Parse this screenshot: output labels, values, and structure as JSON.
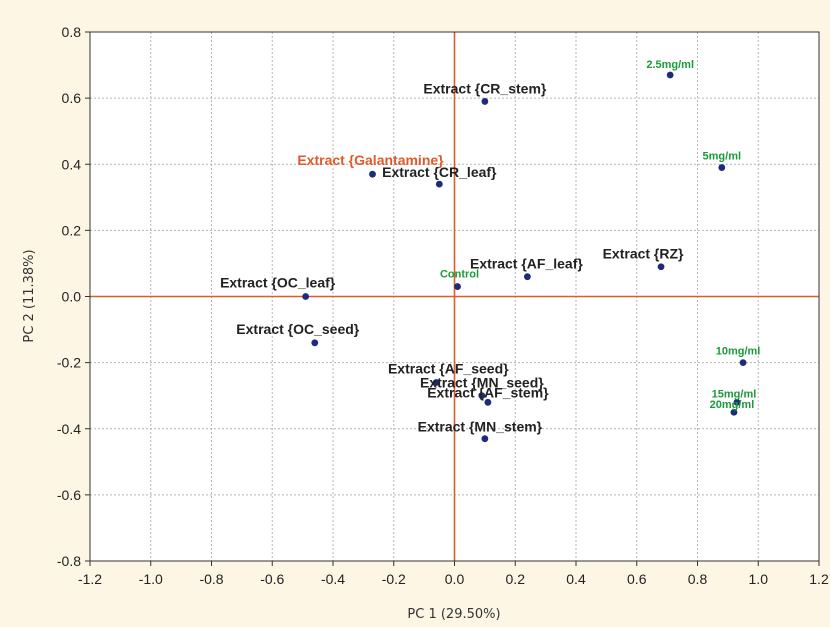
{
  "chart_data": {
    "type": "scatter",
    "title": "",
    "xlabel": "PC 1 (29.50%)",
    "ylabel": "PC 2 (11.38%)",
    "xlim": [
      -1.2,
      1.2
    ],
    "ylim": [
      -0.8,
      0.8
    ],
    "x_ticks": [
      -1.2,
      -1.0,
      -0.8,
      -0.6,
      -0.4,
      -0.2,
      0.0,
      0.2,
      0.4,
      0.6,
      0.8,
      1.0,
      1.2
    ],
    "y_ticks": [
      -0.8,
      -0.6,
      -0.4,
      -0.2,
      0.0,
      0.2,
      0.4,
      0.6,
      0.8
    ],
    "grid": true,
    "reference_lines": {
      "x": 0,
      "y": 0,
      "color": "#e05a2b"
    },
    "point_color": "#1f2a7a",
    "colors": {
      "extract": "#222222",
      "highlight": "#e05a2b",
      "concentration": "#1a9a3a"
    },
    "points": [
      {
        "label": "Extract {CR_stem}",
        "x": 0.1,
        "y": 0.59,
        "group": "extract"
      },
      {
        "label": "Extract {Galantamine}",
        "x": -0.27,
        "y": 0.37,
        "group": "highlight"
      },
      {
        "label": "Extract {CR_leaf}",
        "x": -0.05,
        "y": 0.34,
        "group": "extract"
      },
      {
        "label": "Extract {OC_leaf}",
        "x": -0.49,
        "y": 0.0,
        "group": "extract"
      },
      {
        "label": "Control",
        "x": 0.01,
        "y": 0.03,
        "group": "concentration"
      },
      {
        "label": "Extract {AF_leaf}",
        "x": 0.24,
        "y": 0.06,
        "group": "extract"
      },
      {
        "label": "Extract {RZ}",
        "x": 0.68,
        "y": 0.09,
        "group": "extract"
      },
      {
        "label": "Extract {OC_seed}",
        "x": -0.46,
        "y": -0.14,
        "group": "extract"
      },
      {
        "label": "Extract {AF_seed}",
        "x": -0.06,
        "y": -0.26,
        "group": "extract"
      },
      {
        "label": "Extract {MN_seed}",
        "x": 0.09,
        "y": -0.3,
        "group": "extract"
      },
      {
        "label": "Extract {AF_stem}",
        "x": 0.11,
        "y": -0.32,
        "group": "extract"
      },
      {
        "label": "Extract {MN_stem}",
        "x": 0.1,
        "y": -0.43,
        "group": "extract"
      },
      {
        "label": "2.5mg/ml",
        "x": 0.71,
        "y": 0.67,
        "group": "concentration"
      },
      {
        "label": "5mg/ml",
        "x": 0.88,
        "y": 0.39,
        "group": "concentration"
      },
      {
        "label": "10mg/ml",
        "x": 0.95,
        "y": -0.2,
        "group": "concentration"
      },
      {
        "label": "15mg/ml",
        "x": 0.93,
        "y": -0.32,
        "group": "concentration"
      },
      {
        "label": "20mg/ml",
        "x": 0.92,
        "y": -0.35,
        "group": "concentration"
      }
    ]
  }
}
